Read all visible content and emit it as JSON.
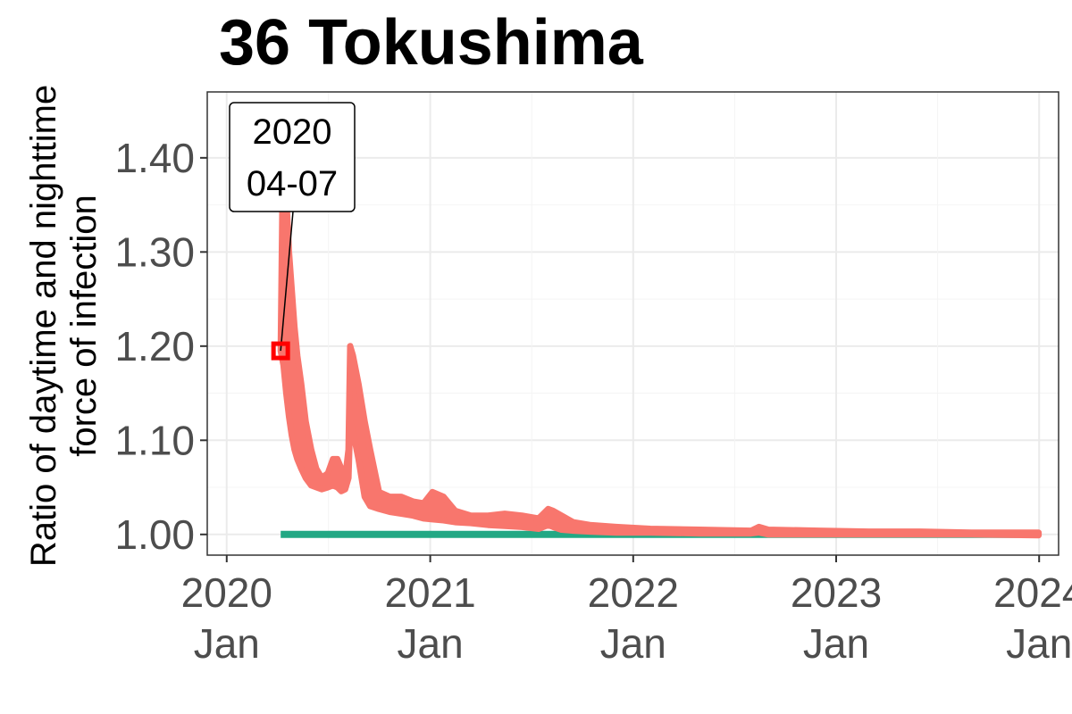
{
  "chart_data": {
    "type": "line",
    "title": "36 Tokushima",
    "ylabel": [
      "Ratio of daytime and nighttime",
      "force of infection"
    ],
    "xlabel": "",
    "ylim": [
      0.978,
      1.47
    ],
    "xlim": [
      "2019-11-27",
      "2024-02-05"
    ],
    "grid": true,
    "legend": "none",
    "y_ticks": [
      1.0,
      1.1,
      1.2,
      1.3,
      1.4
    ],
    "y_tick_labels": [
      "1.00",
      "1.10",
      "1.20",
      "1.30",
      "1.40"
    ],
    "x_ticks": [
      "2020-01-01",
      "2021-01-01",
      "2022-01-01",
      "2023-01-01",
      "2024-01-01"
    ],
    "x_tick_labels": [
      [
        "2020",
        "Jan"
      ],
      [
        "2021",
        "Jan"
      ],
      [
        "2022",
        "Jan"
      ],
      [
        "2023",
        "Jan"
      ],
      [
        "2024",
        "Jan"
      ]
    ],
    "series": [
      {
        "color": "#F8766D",
        "band": true,
        "x": [
          "2020-04-07",
          "2020-04-12",
          "2020-04-17",
          "2020-04-22",
          "2020-04-27",
          "2020-05-02",
          "2020-05-07",
          "2020-05-14",
          "2020-05-22",
          "2020-06-01",
          "2020-06-10",
          "2020-06-20",
          "2020-07-01",
          "2020-07-10",
          "2020-07-18",
          "2020-07-25",
          "2020-08-01",
          "2020-08-07",
          "2020-08-10",
          "2020-08-15",
          "2020-08-25",
          "2020-09-05",
          "2020-09-15",
          "2020-10-01",
          "2020-10-20",
          "2020-11-10",
          "2020-12-01",
          "2020-12-20",
          "2021-01-05",
          "2021-01-25",
          "2021-02-15",
          "2021-03-15",
          "2021-04-15",
          "2021-05-15",
          "2021-06-15",
          "2021-07-15",
          "2021-08-01",
          "2021-08-10",
          "2021-08-25",
          "2021-09-15",
          "2021-10-15",
          "2021-12-01",
          "2022-02-01",
          "2022-05-01",
          "2022-08-01",
          "2022-08-15",
          "2022-09-01",
          "2022-12-01",
          "2023-03-01",
          "2023-06-01",
          "2023-09-01",
          "2023-12-31"
        ],
        "lower": [
          1.195,
          1.18,
          1.15,
          1.125,
          1.105,
          1.09,
          1.08,
          1.07,
          1.06,
          1.052,
          1.05,
          1.048,
          1.05,
          1.052,
          1.05,
          1.046,
          1.048,
          1.06,
          1.12,
          1.11,
          1.08,
          1.04,
          1.03,
          1.027,
          1.024,
          1.022,
          1.02,
          1.017,
          1.016,
          1.015,
          1.013,
          1.012,
          1.01,
          1.009,
          1.008,
          1.006,
          1.01,
          1.008,
          1.005,
          1.004,
          1.003,
          1.002,
          1.002,
          1.001,
          1.001,
          1.002,
          1.0,
          1.0,
          1.0,
          1.0,
          1.0,
          0.999
        ],
        "upper": [
          1.195,
          1.45,
          1.36,
          1.3,
          1.26,
          1.22,
          1.19,
          1.16,
          1.12,
          1.09,
          1.07,
          1.06,
          1.065,
          1.08,
          1.08,
          1.07,
          1.06,
          1.09,
          1.2,
          1.19,
          1.16,
          1.12,
          1.09,
          1.045,
          1.04,
          1.04,
          1.035,
          1.033,
          1.045,
          1.04,
          1.025,
          1.02,
          1.02,
          1.022,
          1.02,
          1.017,
          1.027,
          1.025,
          1.02,
          1.013,
          1.01,
          1.008,
          1.006,
          1.005,
          1.004,
          1.008,
          1.005,
          1.004,
          1.003,
          1.003,
          1.002,
          1.002
        ]
      },
      {
        "color": "#22A884",
        "x": [
          "2020-04-07",
          "2023-12-31"
        ],
        "values": [
          1.0,
          1.0
        ]
      }
    ],
    "annotation": {
      "text": [
        "2020",
        "04-07"
      ],
      "x": "2020-04-07",
      "y": 1.195,
      "marker_color": "#FF0000"
    }
  }
}
